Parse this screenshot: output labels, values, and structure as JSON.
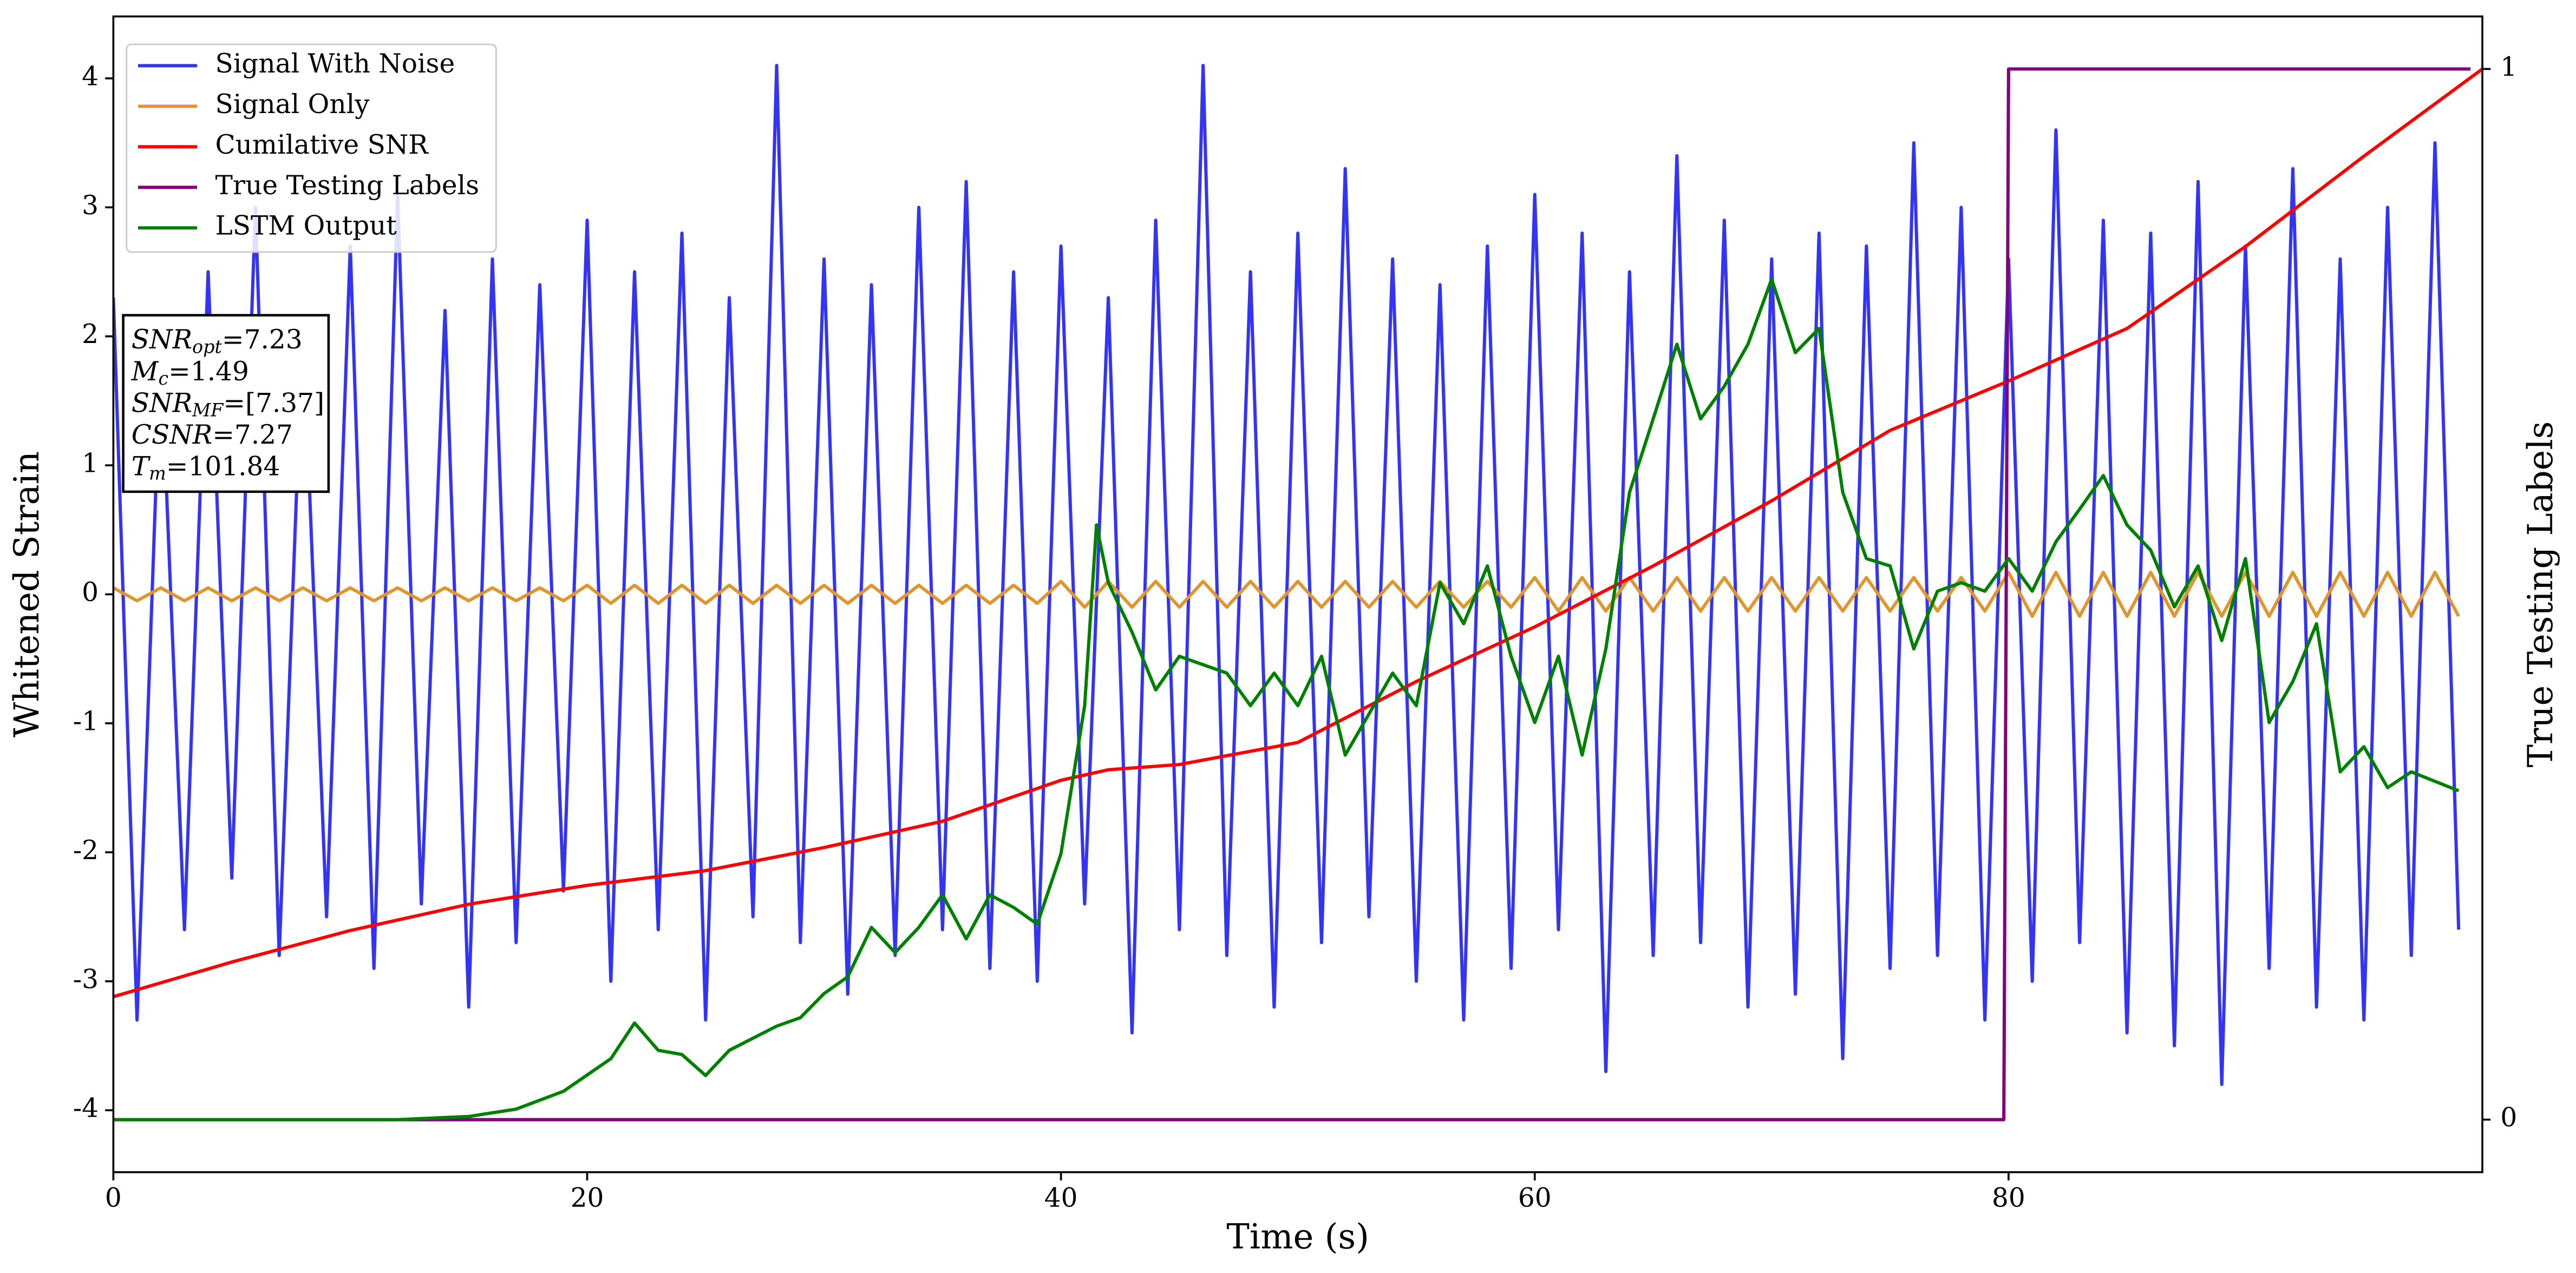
{
  "chart_data": {
    "type": "line",
    "xlabel": "Time (s)",
    "ylabel": "Whitened Strain",
    "y2label": "True Testing Labels",
    "xlim": [
      0,
      100
    ],
    "ylim": [
      -4.48,
      4.48
    ],
    "y2lim": [
      -0.05,
      1.05
    ],
    "xticks": [
      0,
      20,
      40,
      60,
      80
    ],
    "yticks": [
      -4,
      -3,
      -2,
      -1,
      0,
      1,
      2,
      3,
      4
    ],
    "y2ticks": [
      0,
      1
    ],
    "legend": "upper left",
    "x": [
      0,
      1,
      2,
      3,
      4,
      5,
      6,
      7,
      8,
      9,
      10,
      11,
      12,
      13,
      14,
      15,
      16,
      17,
      18,
      19,
      20,
      21,
      22,
      23,
      24,
      25,
      26,
      27,
      28,
      29,
      30,
      31,
      32,
      33,
      34,
      35,
      36,
      37,
      38,
      39,
      40,
      41,
      42,
      43,
      44,
      45,
      46,
      47,
      48,
      49,
      50,
      51,
      52,
      53,
      54,
      55,
      56,
      57,
      58,
      59,
      60,
      61,
      62,
      63,
      64,
      65,
      66,
      67,
      68,
      69,
      70,
      71,
      72,
      73,
      74,
      75,
      76,
      77,
      78,
      79,
      80,
      81,
      82,
      83,
      84,
      85,
      86,
      87,
      88,
      89,
      90,
      91,
      92,
      93,
      94,
      95,
      96,
      97,
      98,
      99
    ],
    "series": [
      {
        "name": "Signal With Noise",
        "color": "#3434f6",
        "values": [
          2.3,
          -3.3,
          1.9,
          -2.6,
          2.5,
          -2.2,
          3.0,
          -2.8,
          2.1,
          -2.5,
          2.7,
          -2.9,
          3.1,
          -2.4,
          2.2,
          -3.2,
          2.6,
          -2.7,
          2.4,
          -2.3,
          2.9,
          -3.0,
          2.5,
          -2.6,
          2.8,
          -3.3,
          2.3,
          -2.5,
          4.1,
          -2.7,
          2.6,
          -3.1,
          2.4,
          -2.8,
          3.0,
          -2.6,
          3.2,
          -2.9,
          2.5,
          -3.0,
          2.7,
          -2.4,
          2.3,
          -3.4,
          2.9,
          -2.6,
          4.1,
          -2.8,
          2.5,
          -3.2,
          2.8,
          -2.7,
          3.3,
          -2.5,
          2.6,
          -3.0,
          2.4,
          -3.3,
          2.7,
          -2.9,
          3.1,
          -2.6,
          2.8,
          -3.7,
          2.5,
          -2.8,
          3.4,
          -2.7,
          2.9,
          -3.2,
          2.6,
          -3.1,
          2.8,
          -3.6,
          2.7,
          -2.9,
          3.5,
          -2.8,
          3.0,
          -3.3,
          2.6,
          -3.0,
          3.6,
          -2.7,
          2.9,
          -3.4,
          2.8,
          -3.5,
          3.2,
          -3.8,
          2.7,
          -2.9,
          3.3,
          -3.2,
          2.6,
          -3.3,
          3.0,
          -2.8,
          3.5,
          -2.6
        ]
      },
      {
        "name": "Signal Only",
        "color": "#e0962e",
        "values": [
          0.05,
          -0.05,
          0.05,
          -0.05,
          0.05,
          -0.05,
          0.05,
          -0.05,
          0.05,
          -0.05,
          0.05,
          -0.05,
          0.05,
          -0.05,
          0.05,
          -0.05,
          0.05,
          -0.05,
          0.05,
          -0.05,
          0.07,
          -0.07,
          0.07,
          -0.07,
          0.07,
          -0.07,
          0.07,
          -0.07,
          0.07,
          -0.07,
          0.07,
          -0.07,
          0.07,
          -0.07,
          0.07,
          -0.07,
          0.07,
          -0.07,
          0.07,
          -0.07,
          0.1,
          -0.1,
          0.1,
          -0.1,
          0.1,
          -0.1,
          0.1,
          -0.1,
          0.1,
          -0.1,
          0.1,
          -0.1,
          0.1,
          -0.1,
          0.1,
          -0.1,
          0.1,
          -0.1,
          0.1,
          -0.1,
          0.13,
          -0.13,
          0.13,
          -0.13,
          0.13,
          -0.13,
          0.13,
          -0.13,
          0.13,
          -0.13,
          0.13,
          -0.13,
          0.13,
          -0.13,
          0.13,
          -0.13,
          0.13,
          -0.13,
          0.13,
          -0.13,
          0.17,
          -0.17,
          0.17,
          -0.17,
          0.17,
          -0.17,
          0.17,
          -0.17,
          0.17,
          -0.17,
          0.17,
          -0.17,
          0.17,
          -0.17,
          0.17,
          -0.17,
          0.17,
          -0.17,
          0.17,
          -0.17
        ]
      },
      {
        "name": "Cumilative SNR",
        "color": "#ff0000",
        "axis": "y2",
        "x": [
          0,
          5,
          10,
          15,
          20,
          25,
          30,
          35,
          40,
          42,
          45,
          50,
          55,
          60,
          65,
          70,
          75,
          80,
          85,
          90,
          95,
          100
        ],
        "values": [
          0.117,
          0.15,
          0.18,
          0.205,
          0.223,
          0.237,
          0.259,
          0.284,
          0.323,
          0.333,
          0.338,
          0.359,
          0.417,
          0.469,
          0.527,
          0.589,
          0.656,
          0.703,
          0.753,
          0.831,
          0.917,
          1.0
        ]
      },
      {
        "name": "True Testing Labels",
        "color": "#800080",
        "axis": "y2",
        "x": [
          0,
          79.8,
          80,
          99.5
        ],
        "values": [
          0,
          0,
          1,
          1
        ]
      },
      {
        "name": "LSTM Output",
        "color": "#008000",
        "axis": "y2",
        "x": [
          0,
          12,
          15,
          17,
          19,
          21,
          22,
          23,
          24,
          25,
          26,
          28,
          29,
          30,
          31,
          32,
          33,
          34,
          35,
          36,
          37,
          38,
          39,
          40,
          41,
          41.5,
          42,
          43,
          44,
          45,
          47,
          48,
          49,
          50,
          51,
          52,
          54,
          55,
          56,
          57,
          58,
          59,
          60,
          61,
          62,
          63,
          64,
          65,
          66,
          67,
          68,
          69,
          70,
          71,
          72,
          73,
          74,
          75,
          76,
          77,
          78,
          79,
          80,
          81,
          82,
          83,
          84,
          85,
          86,
          87,
          88,
          89,
          90,
          91,
          92,
          93,
          94,
          95,
          96,
          97,
          99
        ],
        "values": [
          0,
          0,
          0.003,
          0.01,
          0.027,
          0.058,
          0.092,
          0.066,
          0.062,
          0.042,
          0.066,
          0.089,
          0.097,
          0.12,
          0.136,
          0.183,
          0.159,
          0.183,
          0.214,
          0.172,
          0.214,
          0.202,
          0.186,
          0.253,
          0.394,
          0.566,
          0.511,
          0.464,
          0.409,
          0.441,
          0.425,
          0.394,
          0.425,
          0.394,
          0.441,
          0.347,
          0.425,
          0.394,
          0.511,
          0.472,
          0.527,
          0.441,
          0.378,
          0.441,
          0.347,
          0.448,
          0.597,
          0.667,
          0.738,
          0.667,
          0.698,
          0.738,
          0.8,
          0.73,
          0.753,
          0.597,
          0.534,
          0.527,
          0.448,
          0.503,
          0.511,
          0.503,
          0.534,
          0.503,
          0.55,
          0.581,
          0.613,
          0.566,
          0.542,
          0.488,
          0.527,
          0.456,
          0.534,
          0.378,
          0.417,
          0.472,
          0.331,
          0.355,
          0.316,
          0.331,
          0.313
        ]
      }
    ],
    "annotations": [
      {
        "base": "SNR",
        "sub": "opt",
        "text": "=7.23"
      },
      {
        "base": "M",
        "sub": "c",
        "text": "=1.49"
      },
      {
        "base": "SNR",
        "sub": "MF",
        "text": "=[7.37]"
      },
      {
        "base": "CSNR",
        "sub": null,
        "text": "=7.27"
      },
      {
        "base": "T",
        "sub": "m",
        "text": "=101.84"
      }
    ]
  }
}
